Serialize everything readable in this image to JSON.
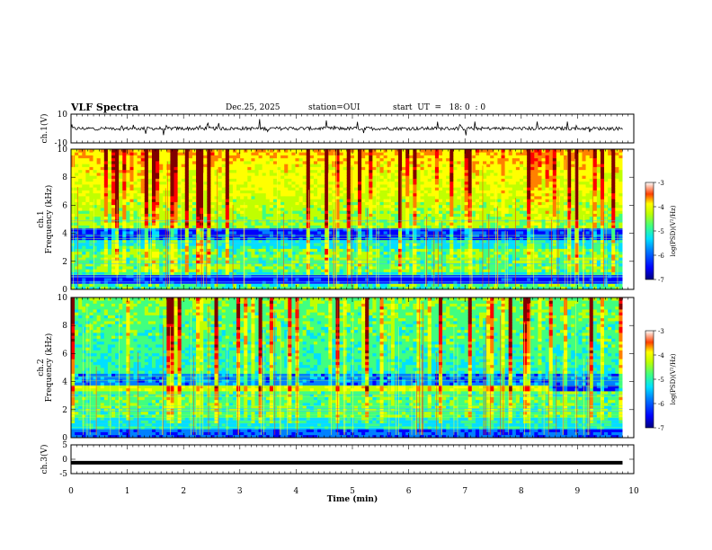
{
  "header": {
    "title": "VLF Spectra",
    "date": "Dec.25, 2025",
    "station": "station=OUI",
    "start": "start  UT  =   18: 0  : 0"
  },
  "colors": {
    "colormap": [
      "#00007f",
      "#0000ff",
      "#0080ff",
      "#00e0ff",
      "#40ff80",
      "#c0ff00",
      "#ffff00",
      "#ff8000",
      "#ff0000",
      "#800000"
    ]
  },
  "chart_data": [
    {
      "type": "line",
      "name": "ch1-waveform",
      "ylabel": "ch.1(V)",
      "ylim": [
        -10,
        10
      ],
      "yticks": [
        "10",
        "-10"
      ],
      "baseline": 0,
      "description_level": "noise around 0 V with impulsive spikes"
    },
    {
      "type": "heatmap",
      "name": "ch1-spectrogram",
      "ylabel_top": "ch.1",
      "ylabel": "Frequency (kHz)",
      "ylim": [
        0,
        10
      ],
      "yticks": [
        "0",
        "2",
        "4",
        "6",
        "8",
        "10"
      ],
      "colorbar": {
        "label": "log(PSD)(V²/Hz)",
        "range": [
          -7,
          -3
        ],
        "ticks": [
          "-3",
          "-4",
          "-5",
          "-6",
          "-7"
        ]
      },
      "quiet_band_khz": [
        3.6,
        4.4
      ],
      "low_band_khz": [
        0.4,
        1.0
      ],
      "bright_band_khz": [
        1.2,
        3.0
      ]
    },
    {
      "type": "heatmap",
      "name": "ch2-spectrogram",
      "ylabel_top": "ch.2",
      "ylabel": "Frequency (kHz)",
      "ylim": [
        0,
        10
      ],
      "yticks": [
        "0",
        "2",
        "4",
        "6",
        "8",
        "10"
      ],
      "colorbar": {
        "label": "log(PSD)(V²/Hz)",
        "range": [
          -7,
          -3
        ],
        "ticks": [
          "-3",
          "-4",
          "-5",
          "-6",
          "-7"
        ]
      },
      "tone_band_khz": [
        3.4,
        3.6
      ],
      "tone_end_min": 8.5,
      "bright_band_khz": [
        1.5,
        3.3
      ]
    },
    {
      "type": "line",
      "name": "ch3-level",
      "ylabel": "ch.3(V)",
      "ylim": [
        -5,
        5
      ],
      "yticks": [
        "5",
        "0",
        "-5"
      ],
      "level": -1.2
    }
  ],
  "xaxis": {
    "label": "Time (min)",
    "xlim": [
      0,
      10
    ],
    "ticks": [
      "0",
      "1",
      "2",
      "3",
      "4",
      "5",
      "6",
      "7",
      "8",
      "9",
      "10"
    ],
    "data_end_min": 9.8
  }
}
